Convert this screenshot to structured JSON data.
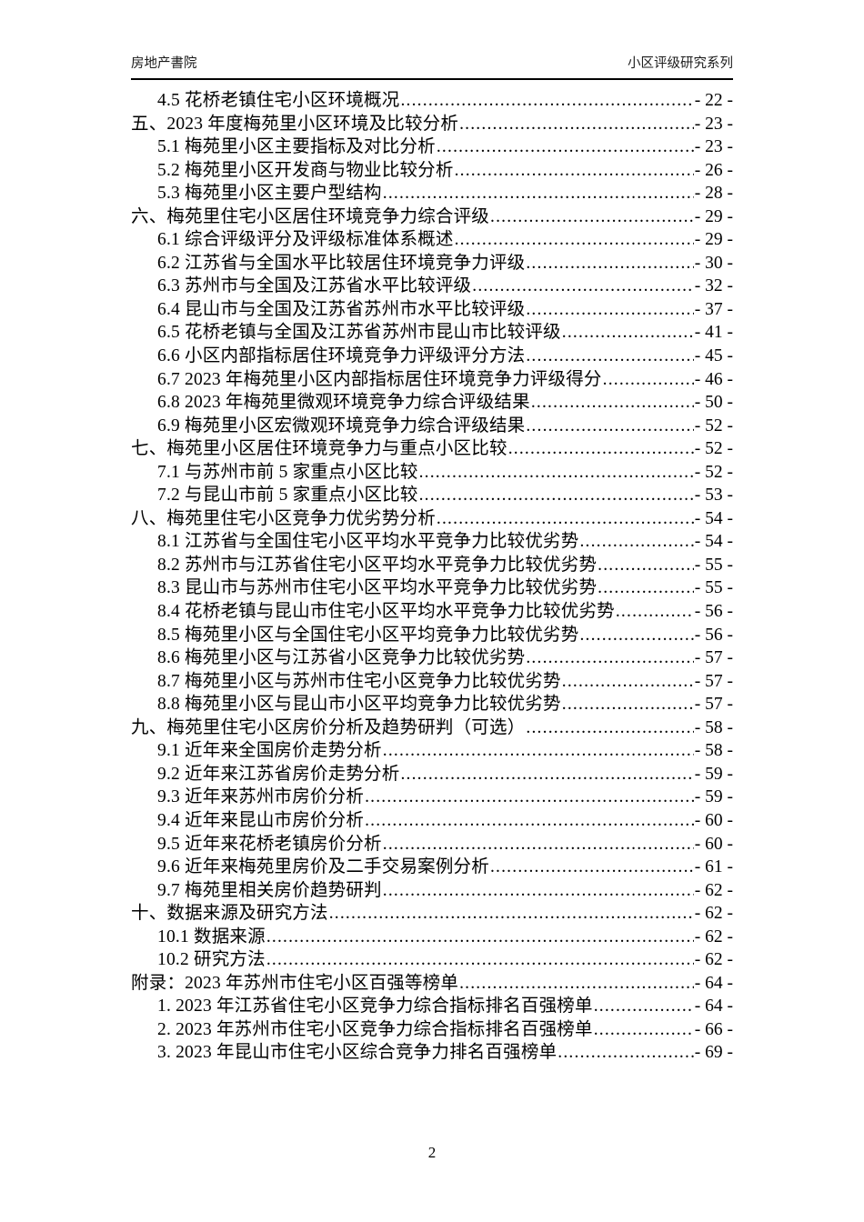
{
  "header": {
    "left": "房地产書院",
    "right": "小区评级研究系列"
  },
  "footer": {
    "page_number": "2"
  },
  "toc": {
    "items": [
      {
        "level": 1,
        "label": "4.5 花桥老镇住宅小区环境概况",
        "page": "- 22 -"
      },
      {
        "level": 0,
        "label": "五、2023 年度梅苑里小区环境及比较分析",
        "page": "- 23 -"
      },
      {
        "level": 1,
        "label": "5.1 梅苑里小区主要指标及对比分析",
        "page": "- 23 -"
      },
      {
        "level": 1,
        "label": "5.2 梅苑里小区开发商与物业比较分析",
        "page": "- 26 -"
      },
      {
        "level": 1,
        "label": "5.3 梅苑里小区主要户型结构",
        "page": "- 28 -"
      },
      {
        "level": 0,
        "label": "六、梅苑里住宅小区居住环境竞争力综合评级",
        "page": "- 29 -"
      },
      {
        "level": 1,
        "label": "6.1 综合评级评分及评级标准体系概述",
        "page": "- 29 -"
      },
      {
        "level": 1,
        "label": "6.2 江苏省与全国水平比较居住环境竞争力评级",
        "page": "- 30 -"
      },
      {
        "level": 1,
        "label": "6.3 苏州市与全国及江苏省水平比较评级",
        "page": "- 32 -"
      },
      {
        "level": 1,
        "label": "6.4 昆山市与全国及江苏省苏州市水平比较评级",
        "page": "- 37 -"
      },
      {
        "level": 1,
        "label": "6.5 花桥老镇与全国及江苏省苏州市昆山市比较评级",
        "page": "- 41 -"
      },
      {
        "level": 1,
        "label": "6.6 小区内部指标居住环境竞争力评级评分方法",
        "page": "- 45 -"
      },
      {
        "level": 1,
        "label": "6.7 2023 年梅苑里小区内部指标居住环境竞争力评级得分",
        "page": "- 46 -"
      },
      {
        "level": 1,
        "label": "6.8 2023 年梅苑里微观环境竞争力综合评级结果",
        "page": "- 50 -"
      },
      {
        "level": 1,
        "label": "6.9 梅苑里小区宏微观环境竞争力综合评级结果",
        "page": "- 52 -"
      },
      {
        "level": 0,
        "label": "七、梅苑里小区居住环境竞争力与重点小区比较",
        "page": "- 52 -"
      },
      {
        "level": 1,
        "label": "7.1 与苏州市前 5 家重点小区比较",
        "page": "- 52 -"
      },
      {
        "level": 1,
        "label": "7.2 与昆山市前 5 家重点小区比较",
        "page": "- 53 -"
      },
      {
        "level": 0,
        "label": "八、梅苑里住宅小区竞争力优劣势分析",
        "page": "- 54 -"
      },
      {
        "level": 1,
        "label": "8.1 江苏省与全国住宅小区平均水平竞争力比较优劣势",
        "page": "- 54 -"
      },
      {
        "level": 1,
        "label": "8.2 苏州市与江苏省住宅小区平均水平竞争力比较优劣势",
        "page": "- 55 -"
      },
      {
        "level": 1,
        "label": "8.3 昆山市与苏州市住宅小区平均水平竞争力比较优劣势",
        "page": "- 55 -"
      },
      {
        "level": 1,
        "label": "8.4 花桥老镇与昆山市住宅小区平均水平竞争力比较优劣势",
        "page": "- 56 -"
      },
      {
        "level": 1,
        "label": "8.5 梅苑里小区与全国住宅小区平均竞争力比较优劣势",
        "page": "- 56 -"
      },
      {
        "level": 1,
        "label": "8.6 梅苑里小区与江苏省小区竞争力比较优劣势",
        "page": "- 57 -"
      },
      {
        "level": 1,
        "label": "8.7 梅苑里小区与苏州市住宅小区竞争力比较优劣势",
        "page": "- 57 -"
      },
      {
        "level": 1,
        "label": "8.8 梅苑里小区与昆山市小区平均竞争力比较优劣势",
        "page": "- 57 -"
      },
      {
        "level": 0,
        "label": "九、梅苑里住宅小区房价分析及趋势研判（可选） ",
        "page": "- 58 -"
      },
      {
        "level": 1,
        "label": "9.1 近年来全国房价走势分析",
        "page": "- 58 -"
      },
      {
        "level": 1,
        "label": "9.2 近年来江苏省房价走势分析",
        "page": "- 59 -"
      },
      {
        "level": 1,
        "label": "9.3 近年来苏州市房价分析",
        "page": "- 59 -"
      },
      {
        "level": 1,
        "label": "9.4 近年来昆山市房价分析",
        "page": "- 60 -"
      },
      {
        "level": 1,
        "label": "9.5 近年来花桥老镇房价分析",
        "page": "- 60 -"
      },
      {
        "level": 1,
        "label": "9.6 近年来梅苑里房价及二手交易案例分析",
        "page": "- 61 -"
      },
      {
        "level": 1,
        "label": "9.7 梅苑里相关房价趋势研判",
        "page": "- 62 -"
      },
      {
        "level": 0,
        "label": "十、数据来源及研究方法",
        "page": "- 62 -"
      },
      {
        "level": 1,
        "label": "10.1 数据来源",
        "page": "- 62 -"
      },
      {
        "level": 1,
        "label": "10.2 研究方法",
        "page": "- 62 -"
      },
      {
        "level": 0,
        "label": "附录：2023 年苏州市住宅小区百强等榜单",
        "page": "- 64 -"
      },
      {
        "level": 1,
        "label": "1. 2023 年江苏省住宅小区竞争力综合指标排名百强榜单",
        "page": "- 64 -"
      },
      {
        "level": 1,
        "label": "2. 2023 年苏州市住宅小区竞争力综合指标排名百强榜单",
        "page": "- 66 -"
      },
      {
        "level": 1,
        "label": "3. 2023 年昆山市住宅小区综合竞争力排名百强榜单",
        "page": "- 69 -"
      }
    ]
  }
}
